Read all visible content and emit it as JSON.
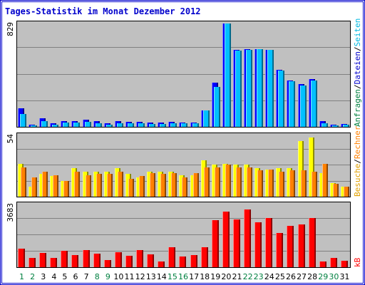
{
  "title": "Tages-Statistik im Monat Dezember 2012",
  "colors": {
    "frame": "#0000cc",
    "panel_bg": "#c0c0c0",
    "grid": "#808080",
    "title_color": "#0000cc",
    "axis_text": "#000000",
    "weekend_text": "#008040",
    "anfragen": "#0000ff",
    "dateien": "#00c0ff",
    "besuche": "#ffff00",
    "rechner": "#ff8000",
    "kb": "#ff0000",
    "legend_green": "#008040",
    "legend_blue": "#0000cc",
    "legend_cyan": "#00b8e0",
    "legend_yellow": "#e0a000",
    "legend_orange": "#ff8000",
    "legend_red": "#ff0000",
    "legend_sep": "#000000"
  },
  "days": [
    "1",
    "2",
    "3",
    "4",
    "5",
    "6",
    "7",
    "8",
    "9",
    "10",
    "11",
    "12",
    "13",
    "14",
    "15",
    "16",
    "17",
    "18",
    "19",
    "20",
    "21",
    "22",
    "23",
    "24",
    "25",
    "26",
    "27",
    "28",
    "29",
    "30",
    "31"
  ],
  "weekend_days": [
    1,
    2,
    8,
    9,
    15,
    16,
    22,
    23,
    29,
    30
  ],
  "chart_data": [
    {
      "type": "bar",
      "panel": "top",
      "ymax_label": "829",
      "ylim": [
        0,
        829
      ],
      "legend": {
        "anfragen": "Anfragen",
        "dateien": "Dateien",
        "seiten": "Seiten",
        "sep": "/"
      },
      "series": [
        {
          "name": "Anfragen",
          "values": [
            146,
            19,
            70,
            27,
            45,
            47,
            59,
            43,
            29,
            43,
            38,
            40,
            32,
            32,
            38,
            35,
            37,
            131,
            354,
            829,
            616,
            623,
            626,
            619,
            458,
            374,
            341,
            381,
            43,
            20,
            25
          ]
        },
        {
          "name": "Dateien",
          "values": [
            104,
            14,
            48,
            19,
            32,
            32,
            42,
            30,
            20,
            30,
            28,
            27,
            24,
            24,
            28,
            26,
            27,
            133,
            319,
            829,
            609,
            616,
            622,
            615,
            452,
            368,
            334,
            374,
            31,
            14,
            20
          ]
        }
      ]
    },
    {
      "type": "bar",
      "panel": "middle",
      "ymax_label": "54",
      "ylim": [
        0,
        54
      ],
      "legend": {
        "besuche": "Besuche",
        "rechner": "Rechner",
        "sep": "/"
      },
      "series": [
        {
          "name": "Besuche",
          "values": [
            29,
            9,
            20,
            18,
            14,
            25,
            22,
            22,
            22,
            25,
            20,
            17,
            22,
            22,
            22,
            19,
            19,
            32,
            28,
            29,
            28,
            28,
            25,
            24,
            25,
            25,
            49,
            52,
            21,
            12,
            9
          ]
        },
        {
          "name": "Rechner",
          "values": [
            26,
            17,
            22,
            19,
            14,
            22,
            19,
            20,
            20,
            22,
            16,
            18,
            21,
            20,
            21,
            17,
            21,
            26,
            26,
            28,
            26,
            26,
            23,
            24,
            22,
            23,
            23,
            22,
            29,
            11,
            9
          ]
        }
      ]
    },
    {
      "type": "bar",
      "panel": "bottom",
      "ymax_label": "3683",
      "ylim": [
        0,
        3683
      ],
      "legend": {
        "kb": "kB"
      },
      "series": [
        {
          "name": "kB",
          "values": [
            1092,
            535,
            849,
            535,
            973,
            694,
            1003,
            790,
            422,
            878,
            655,
            1003,
            744,
            319,
            1184,
            615,
            719,
            1165,
            2771,
            3262,
            2819,
            3383,
            2624,
            2876,
            2015,
            2438,
            2512,
            2876,
            339,
            564,
            392
          ]
        }
      ]
    }
  ]
}
